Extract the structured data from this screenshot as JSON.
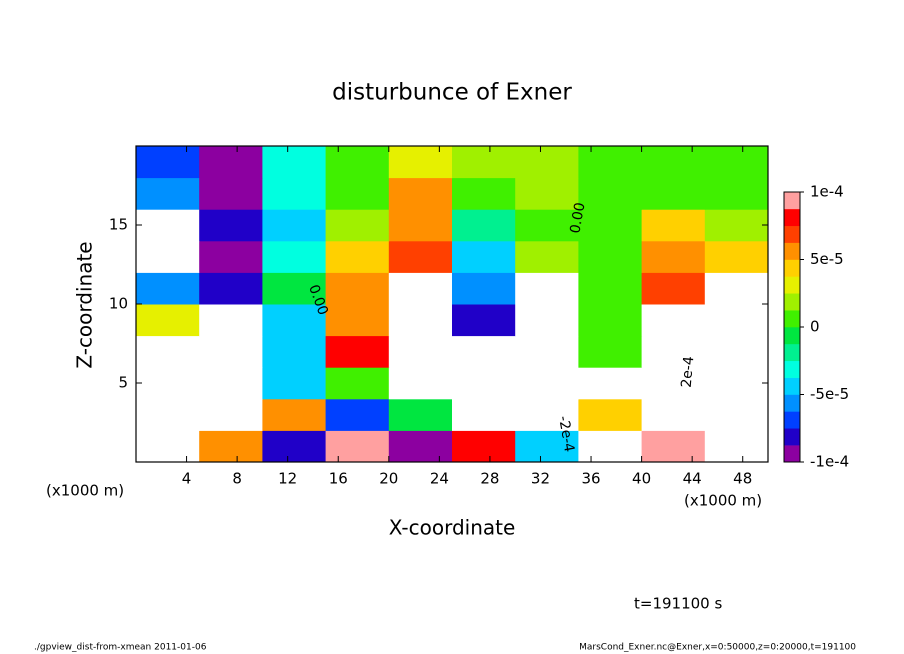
{
  "chart_data": {
    "type": "heatmap",
    "title": "disturbunce of Exner",
    "xlabel": "X-coordinate",
    "ylabel": "Z-coordinate",
    "x_unit_label": "(x1000 m)",
    "xlim": [
      0,
      50
    ],
    "ylim": [
      0,
      20
    ],
    "xticks": [
      4,
      8,
      12,
      16,
      20,
      24,
      28,
      32,
      36,
      40,
      44,
      48
    ],
    "yticks": [
      5,
      10,
      15
    ],
    "x": [
      2.5,
      7.5,
      12.5,
      17.5,
      22.5,
      27.5,
      32.5,
      37.5,
      42.5,
      47.5
    ],
    "y": [
      1,
      3,
      5,
      7,
      9,
      11,
      13,
      15,
      17,
      19
    ],
    "values": [
      [
        0.0002,
        5e-05,
        -8e-05,
        9e-05,
        -9e-05,
        8e-05,
        -5e-05,
        -0.0002,
        9e-05,
        0.0002
      ],
      [
        0.0002,
        -0.0002,
        6e-05,
        -7e-05,
        -1e-05,
        -0.0002,
        -0.0002,
        4e-05,
        0.0002,
        0.0002
      ],
      [
        0.0002,
        -0.0002,
        -4e-05,
        0,
        -0.0002,
        0.0002,
        -0.0002,
        0.0002,
        0.0002,
        0.0002
      ],
      [
        0.0002,
        -0.0002,
        -5e-05,
        8e-05,
        0.0002,
        0.0002,
        -0.0002,
        1e-05,
        0.0002,
        0.0002
      ],
      [
        3e-05,
        -0.0002,
        -5e-05,
        5e-05,
        0.0002,
        -8e-05,
        -0.0002,
        0,
        0.0002,
        0.0002
      ],
      [
        -6e-05,
        -8e-05,
        -1e-05,
        6e-05,
        0.0002,
        -6e-05,
        -0.0002,
        1e-05,
        7e-05,
        0.0002
      ],
      [
        -0.0002,
        -9e-05,
        -3e-05,
        4e-05,
        7e-05,
        -5e-05,
        2e-05,
        1e-05,
        6e-05,
        4e-05
      ],
      [
        -0.0002,
        -8e-05,
        -4e-05,
        2e-05,
        6e-05,
        -2e-05,
        1e-05,
        0,
        4e-05,
        2e-05
      ],
      [
        -6e-05,
        -9e-05,
        -3e-05,
        1e-05,
        5e-05,
        0,
        2e-05,
        1e-05,
        1e-05,
        1e-05
      ],
      [
        -7e-05,
        -9e-05,
        -3e-05,
        1e-05,
        3e-05,
        2e-05,
        2e-05,
        1e-05,
        0,
        0
      ]
    ],
    "clim": [
      -0.0001,
      0.0001
    ],
    "colors": [
      "#8c00a0",
      "#2000c8",
      "#0040ff",
      "#0090ff",
      "#00d0ff",
      "#00ffe0",
      "#00f090",
      "#00e640",
      "#40f000",
      "#a0f000",
      "#e6f000",
      "#ffd000",
      "#ff9000",
      "#ff4000",
      "#ff0000",
      "#ffa0a0"
    ],
    "out_of_range_color": "#ffffff",
    "colorbar_ticks": [
      {
        "value": 0.0001,
        "label": "1e-4"
      },
      {
        "value": 5e-05,
        "label": "5e-5"
      },
      0,
      {
        "value": -5e-05,
        "label": "-5e-5"
      },
      {
        "value": -0.0001,
        "label": "-1e-4"
      }
    ],
    "contour_labels": [
      "0.00",
      "0.00",
      "-2e-4",
      "2e-4"
    ],
    "annotation": "t=191100 s",
    "footer_left": "./gpview_dist-from-xmean  2011-01-06",
    "footer_right": "MarsCond_Exner.nc@Exner,x=0:50000,z=0:20000,t=191100"
  }
}
